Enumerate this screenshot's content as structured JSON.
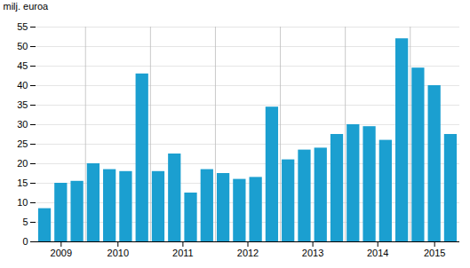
{
  "chart_data": {
    "type": "bar",
    "ylabel": "milj. euroa",
    "categories": [
      "2009",
      null,
      null,
      "2010",
      null,
      null,
      null,
      "2011",
      null,
      null,
      null,
      "2012",
      null,
      null,
      null,
      "2013",
      null,
      null,
      null,
      "2014",
      null,
      null,
      null,
      "2015",
      null,
      null
    ],
    "values": [
      8.5,
      15.0,
      15.5,
      20.0,
      18.5,
      18.0,
      43.0,
      18.0,
      22.5,
      12.5,
      18.5,
      17.5,
      16.0,
      16.5,
      34.5,
      21.0,
      23.5,
      24.0,
      27.5,
      30.0,
      29.5,
      26.0,
      52.0,
      44.5,
      40.0,
      27.5
    ],
    "color": "#1b9fd0",
    "ylim": [
      0,
      55
    ],
    "yticks": [
      0,
      5,
      10,
      15,
      20,
      25,
      30,
      35,
      40,
      45,
      50,
      55
    ],
    "grid": true
  }
}
